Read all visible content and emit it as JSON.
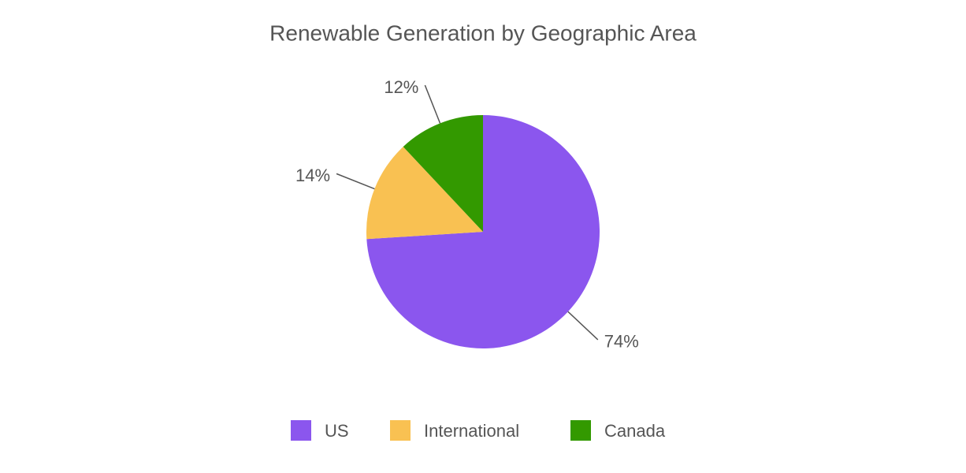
{
  "chart_data": {
    "type": "pie",
    "title": "Renewable Generation by Geographic Area",
    "categories": [
      "US",
      "International",
      "Canada"
    ],
    "values": [
      74,
      14,
      12
    ],
    "value_labels": [
      "74%",
      "14%",
      "12%"
    ],
    "colors": [
      "#8b56ee",
      "#f9c152",
      "#339900"
    ],
    "legend": "bottom"
  }
}
